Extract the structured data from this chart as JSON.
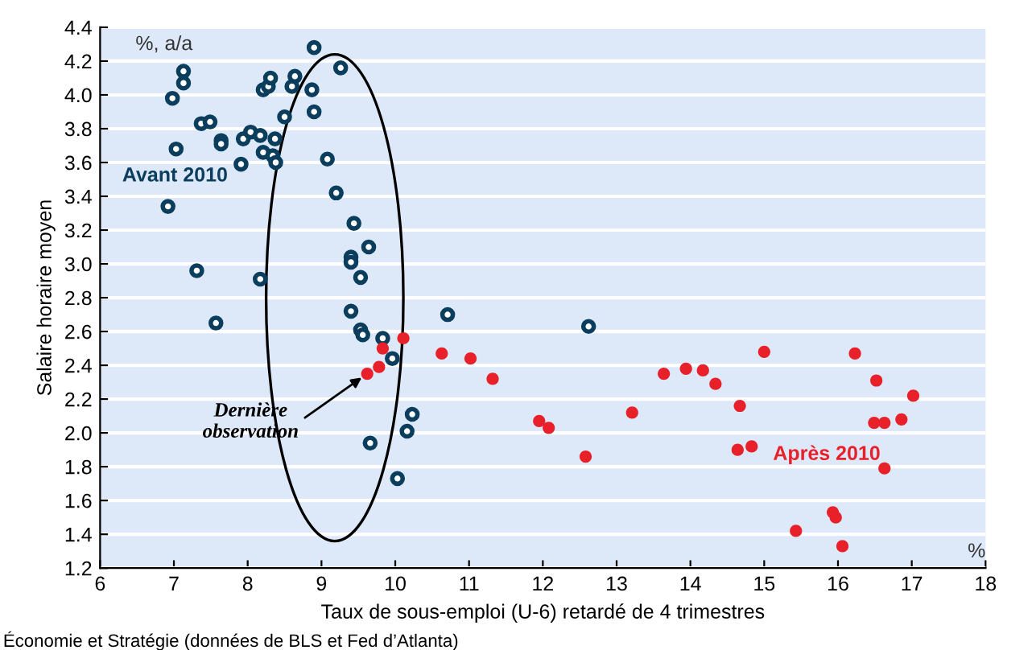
{
  "chart_data": {
    "type": "scatter",
    "xlabel": "Taux de sous-emploi (U-6) retardé de 4 trimestres",
    "ylabel": "Salaire horaire moyen",
    "xlim": [
      6,
      18
    ],
    "xticks": [
      6,
      7,
      8,
      9,
      10,
      11,
      12,
      13,
      14,
      15,
      16,
      17,
      18
    ],
    "ylim": [
      1.2,
      4.4
    ],
    "yticks": [
      1.2,
      1.4,
      1.6,
      1.8,
      {
        "value": 2,
        "label": "2.0"
      },
      2.2,
      2.4,
      2.6,
      2.8,
      {
        "value": 3,
        "label": "3.0"
      },
      3.2,
      3.4,
      3.6,
      3.8,
      {
        "value": 4,
        "label": "4.0"
      },
      4.2,
      4.4
    ],
    "grid": "y",
    "legend": false,
    "marker": "circle",
    "annotations": [
      "%, a/a",
      "%",
      {
        "text": "Dernière\nobservation",
        "x": 9.62,
        "y": 2.35
      },
      "Économie et Stratégie (données de BLS et Fed d’Atlanta)"
    ],
    "series": [
      {
        "name": "Avant 2010",
        "color": "#0b3d5c",
        "x": [
          6.98,
          7.13,
          7.13,
          7.03,
          6.92,
          7.37,
          7.49,
          7.64,
          7.64,
          7.31,
          7.91,
          7.94,
          8.04,
          8.17,
          8.21,
          8.34,
          8.38,
          8.37,
          8.21,
          8.28,
          8.31,
          8.5,
          8.6,
          8.64,
          8.87,
          8.9,
          8.9,
          9.26,
          9.08,
          9.2,
          9.44,
          9.64,
          9.4,
          9.4,
          9.53,
          8.17,
          7.57,
          9.4,
          9.53,
          9.56,
          9.83,
          9.96,
          10.23,
          10.16,
          9.66,
          10.03,
          10.71,
          12.62
        ],
        "values": [
          3.98,
          4.14,
          4.07,
          3.68,
          3.34,
          3.83,
          3.84,
          3.73,
          3.71,
          2.96,
          3.59,
          3.74,
          3.78,
          3.76,
          3.66,
          3.64,
          3.6,
          3.74,
          4.03,
          4.05,
          4.1,
          3.87,
          4.05,
          4.11,
          4.03,
          3.9,
          4.28,
          4.16,
          3.62,
          3.42,
          3.24,
          3.1,
          3.04,
          3.01,
          2.92,
          2.91,
          2.65,
          2.72,
          2.61,
          2.58,
          2.56,
          2.44,
          2.11,
          2.01,
          1.94,
          1.73,
          2.7,
          2.63
        ]
      },
      {
        "name": "Après 2010",
        "color": "#e8202a",
        "x": [
          10.11,
          9.83,
          9.78,
          9.62,
          10.63,
          11.02,
          11.32,
          11.95,
          12.08,
          12.58,
          13.21,
          13.64,
          13.94,
          14.17,
          14.34,
          14.67,
          14.64,
          14.83,
          15.0,
          15.43,
          15.93,
          15.97,
          16.06,
          16.23,
          16.52,
          16.49,
          16.63,
          16.63,
          16.86,
          17.02
        ],
        "values": [
          2.56,
          2.5,
          2.39,
          2.35,
          2.47,
          2.44,
          2.32,
          2.07,
          2.03,
          1.86,
          2.12,
          2.35,
          2.38,
          2.37,
          2.29,
          2.16,
          1.9,
          1.92,
          2.48,
          1.42,
          1.53,
          1.5,
          1.33,
          2.47,
          2.31,
          2.06,
          2.06,
          1.79,
          2.08,
          2.22
        ]
      }
    ]
  }
}
